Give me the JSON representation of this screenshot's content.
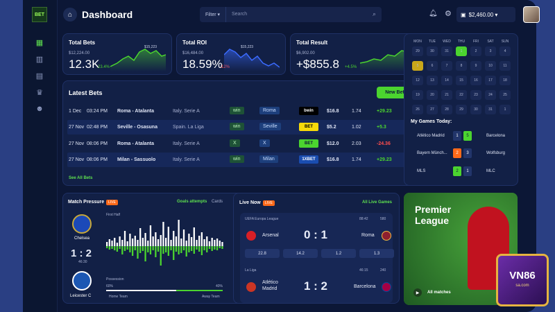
{
  "app": {
    "title": "Dashboard",
    "logo": "BET"
  },
  "nav": [
    {
      "icon": "grid-icon"
    },
    {
      "icon": "bar-chart-icon"
    },
    {
      "icon": "table-icon"
    },
    {
      "icon": "trophy-icon"
    },
    {
      "icon": "users-icon"
    }
  ],
  "search": {
    "filter_label": "Filter ▾",
    "placeholder": "Search"
  },
  "header": {
    "balance": "$2,460.00 ▾"
  },
  "kpis": [
    {
      "label": "Total Bets",
      "sub": "$12,224.00",
      "value": "12.3K",
      "change": "23.4%",
      "peak": "$15,223",
      "color": "#4bd42f"
    },
    {
      "label": "Total ROI",
      "sub": "$16,484.00",
      "value": "18.59%",
      "change": "-12%",
      "peak": "$15,223",
      "color": "#3b6bff"
    },
    {
      "label": "Total Result",
      "sub": "$6,902.00",
      "value": "+$855.8",
      "change": "+4.5%",
      "peak": "",
      "color": "#4bd42f"
    }
  ],
  "latest": {
    "title": "Latest Bets",
    "new_bet": "New Bet",
    "see_all": "See All Bets",
    "rows": [
      {
        "date": "1 Dec",
        "time": "03:24 PM",
        "match": "Roma - Atalanta",
        "league": "Italy. Serie A",
        "result": "win",
        "pick": "Roma",
        "bookie": "bwin",
        "stake": "$16.8",
        "odds": "1.74",
        "pl": "+29.23"
      },
      {
        "date": "27 Nov",
        "time": "02:48 PM",
        "match": "Seville - Osasuna",
        "league": "Spain. La Liga",
        "result": "win",
        "pick": "Seville",
        "bookie": "BET",
        "stake": "$5.2",
        "odds": "1.02",
        "pl": "+5.3"
      },
      {
        "date": "27 Nov",
        "time": "08:06 PM",
        "match": "Roma - Atalanta",
        "league": "Italy. Serie A",
        "result": "X",
        "pick": "X",
        "bookie": "BET",
        "stake": "$12.0",
        "odds": "2.03",
        "pl": "-24.36"
      },
      {
        "date": "27 Nov",
        "time": "08:06 PM",
        "match": "Milan - Sassuolo",
        "league": "Italy. Serie A",
        "result": "win",
        "pick": "Milan",
        "bookie": "1XBET",
        "stake": "$16.8",
        "odds": "1.74",
        "pl": "+29.23"
      }
    ]
  },
  "calendar": {
    "days": [
      "MON",
      "TUE",
      "WED",
      "THU",
      "FRI",
      "SAT",
      "SUN"
    ],
    "weeks": [
      [
        "29",
        "30",
        "31",
        "1",
        "2",
        "3",
        "4"
      ],
      [
        "5",
        "6",
        "7",
        "8",
        "9",
        "10",
        "11"
      ],
      [
        "12",
        "13",
        "14",
        "15",
        "16",
        "17",
        "18"
      ],
      [
        "19",
        "20",
        "21",
        "22",
        "23",
        "24",
        "25"
      ],
      [
        "26",
        "27",
        "28",
        "29",
        "30",
        "31",
        "1"
      ]
    ]
  },
  "my_games": {
    "title": "My Games Today:",
    "rows": [
      {
        "home": "Atlético Madrid",
        "s1": "1",
        "s2": "5",
        "away": "Barcelona"
      },
      {
        "home": "Bayern Münch...",
        "s1": "2",
        "s2": "3",
        "away": "Wolfsburg"
      },
      {
        "home": "MLS",
        "s1": "2",
        "s2": "1",
        "away": "MLC"
      }
    ]
  },
  "pressure": {
    "title": "Match Pressure",
    "live": "LIVE",
    "tab1": "Goals attempts",
    "tab2": "Cards",
    "home": "Chelsea",
    "away": "Leicester C",
    "score": "1 : 2",
    "clock": "46:30",
    "half": "First Half",
    "possession_label": "Possession",
    "home_pct": "60%",
    "away_pct": "40%",
    "home_legend": "Home Team",
    "away_legend": "Away Team",
    "bars_up": [
      6,
      10,
      8,
      12,
      5,
      14,
      9,
      22,
      7,
      18,
      11,
      15,
      9,
      26,
      12,
      19,
      8,
      30,
      14,
      20,
      10,
      16,
      35,
      12,
      28,
      9,
      22,
      14,
      38,
      11,
      24,
      8,
      18,
      13,
      27,
      9,
      15,
      20,
      10,
      14,
      7,
      12,
      9,
      11,
      8,
      6
    ],
    "bars_down": [
      3,
      5,
      4,
      6,
      8,
      4,
      12,
      7,
      5,
      9,
      14,
      6,
      18,
      10,
      7,
      22,
      9,
      12,
      6,
      16,
      8,
      28,
      11,
      9,
      14,
      6,
      20,
      8,
      12,
      10,
      6,
      15,
      9,
      7,
      11,
      5,
      8,
      13,
      6,
      9,
      4,
      7,
      5,
      6,
      3,
      4
    ]
  },
  "live": {
    "title": "Live Now",
    "live": "LIVE",
    "all_link": "All Live Games",
    "matches": [
      {
        "league": "UEFA Europa League",
        "time": "88:42",
        "viewers": "580",
        "home": "Arsenal",
        "away": "Roma",
        "score": "0 : 1",
        "odds": [
          "22.8",
          "14.2",
          "1.2",
          "1.3"
        ]
      },
      {
        "league": "La Liga",
        "time": "46:15",
        "viewers": "240",
        "home": "Atlético Madrid",
        "away": "Barcelona",
        "score": "1 : 2",
        "odds": [
          "",
          "",
          "",
          ""
        ]
      }
    ]
  },
  "promo": {
    "title": "Premier League",
    "link": "All matches",
    "badge": "VN86",
    "badge_sub": "sa.com"
  }
}
